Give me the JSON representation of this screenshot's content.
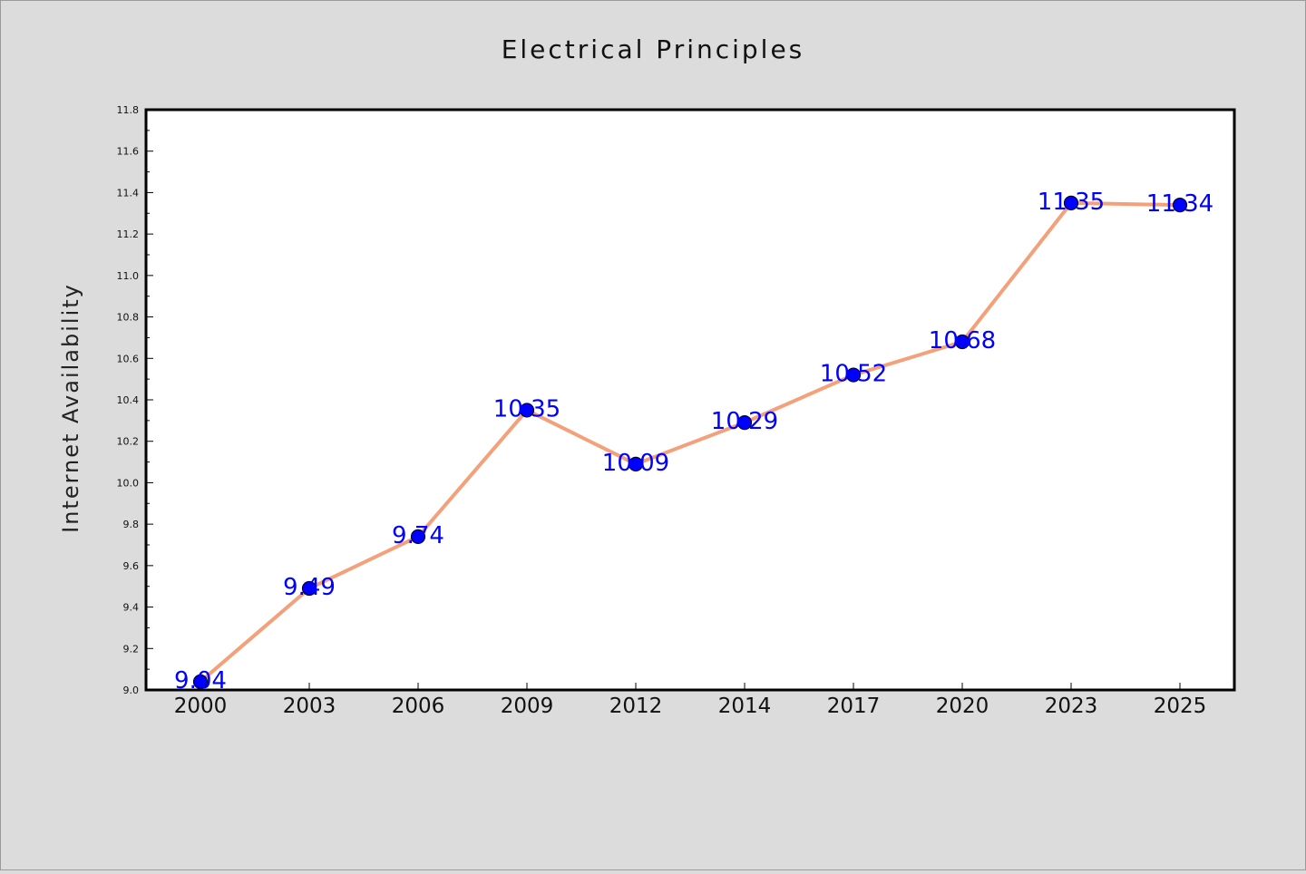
{
  "chart_data": {
    "type": "line",
    "title": "Electrical Principles",
    "xlabel": "",
    "ylabel": "Internet Availability",
    "categories": [
      "2000",
      "2003",
      "2006",
      "2009",
      "2012",
      "2014",
      "2017",
      "2020",
      "2023",
      "2025"
    ],
    "series": [
      {
        "values": [
          9.04,
          9.49,
          9.74,
          10.35,
          10.09,
          10.29,
          10.52,
          10.68,
          11.35,
          11.34
        ],
        "data_labels": [
          "9.04",
          "9.49",
          "9.74",
          "10.35",
          "10.09",
          "10.29",
          "10.52",
          "10.68",
          "11.35",
          "11.34"
        ]
      }
    ],
    "yticks": [
      "9.0",
      "9.2",
      "9.4",
      "9.6",
      "9.8",
      "10.0",
      "10.2",
      "10.4",
      "10.6",
      "10.8",
      "11.0",
      "11.2",
      "11.4",
      "11.6",
      "11.8"
    ],
    "ylim": [
      9.0,
      11.8
    ],
    "grid": false,
    "colors": {
      "line": "#f4a07a",
      "marker": "#0000ff",
      "marker_edge": "#000033",
      "label": "#0000ff",
      "plot_bg": "#ffffff",
      "figure_bg": "#dcdcdc"
    }
  }
}
